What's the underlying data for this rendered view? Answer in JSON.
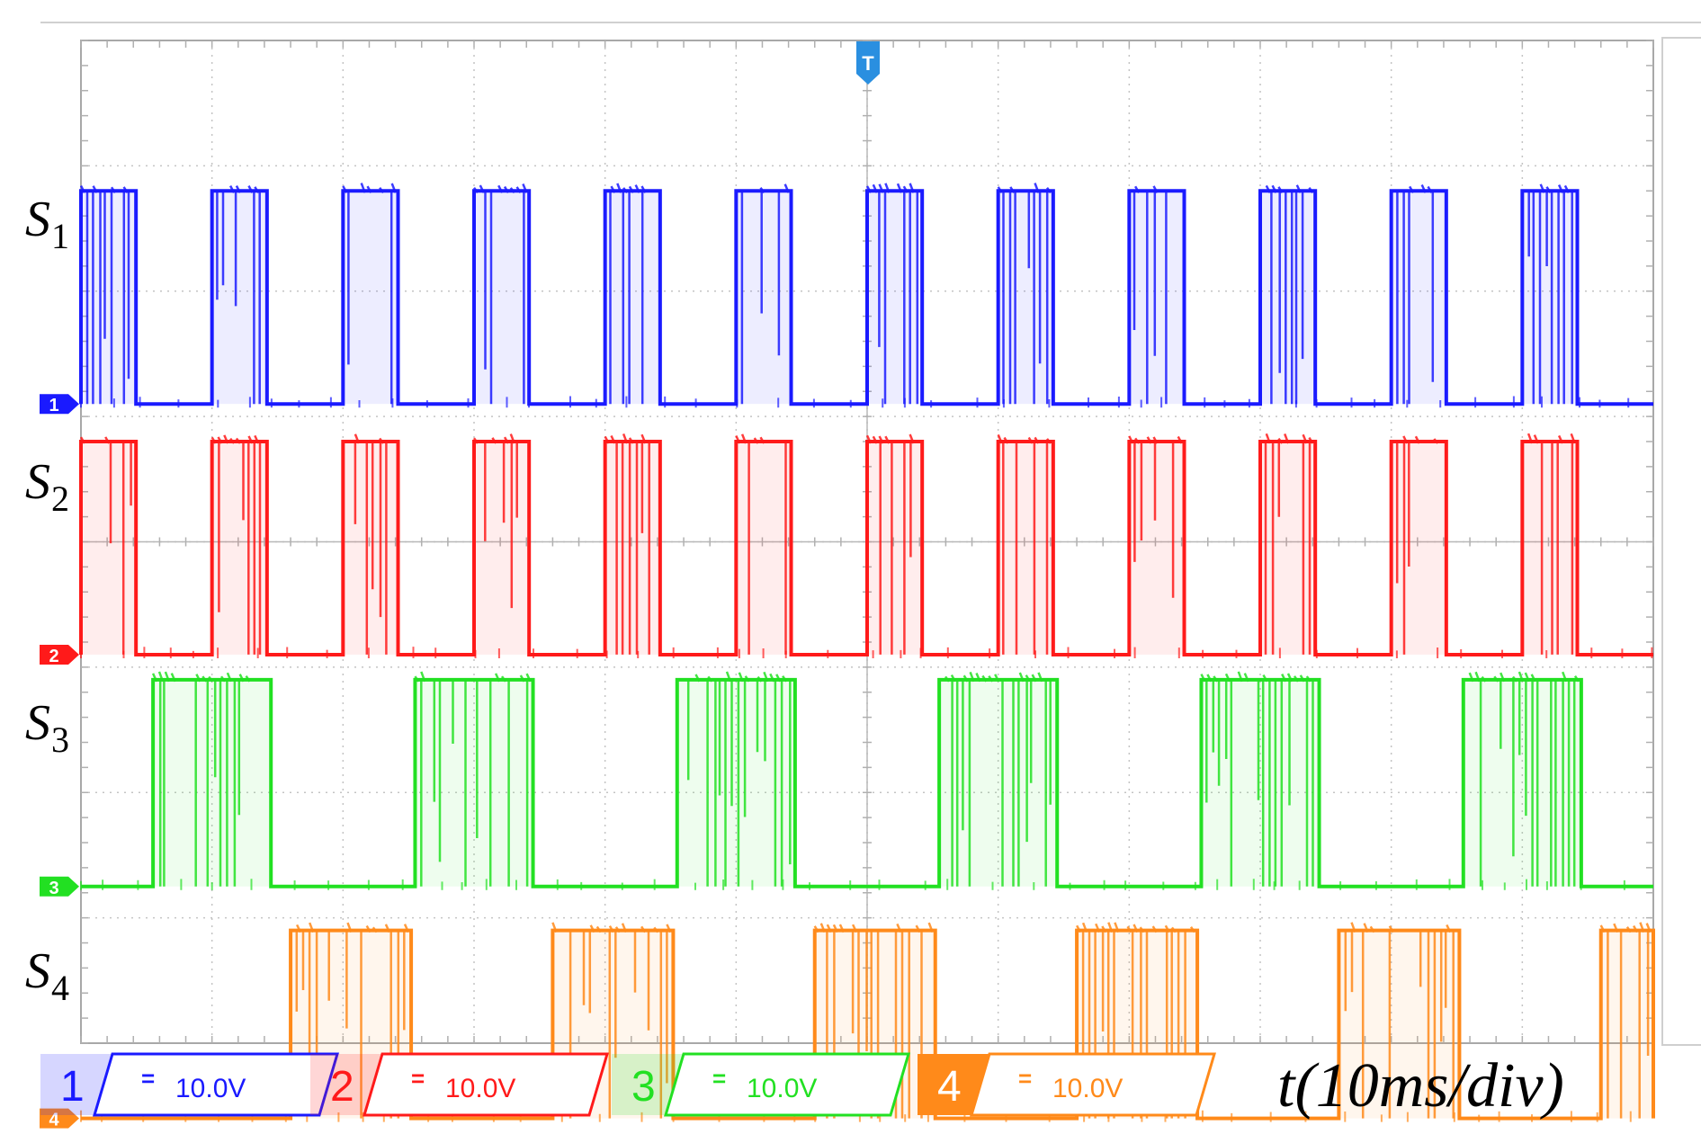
{
  "chart_data": {
    "type": "line",
    "title": "",
    "x_per_div": "10ms/div",
    "x_divisions": 12,
    "y_divisions": 8,
    "grid": true,
    "trigger_marker": "T",
    "series": [
      {
        "name": "S",
        "subscript": "1",
        "channel": "1",
        "color": "#1a1aff",
        "scale": "10.0V",
        "coupling_symbol": "=",
        "high_level_div": 6.8,
        "low_level_div": 5.1,
        "period_div": 1.0,
        "first_high_div": 0.0,
        "duty": 0.42
      },
      {
        "name": "S",
        "subscript": "2",
        "channel": "2",
        "color": "#ff1a1a",
        "scale": "10.0V",
        "coupling_symbol": "=",
        "high_level_div": 4.8,
        "low_level_div": 3.1,
        "period_div": 1.0,
        "first_high_div": 0.0,
        "duty": 0.42
      },
      {
        "name": "S",
        "subscript": "3",
        "channel": "3",
        "color": "#22e022",
        "scale": "10.0V",
        "coupling_symbol": "=",
        "high_level_div": 2.9,
        "low_level_div": 1.25,
        "period_div": 2.0,
        "first_high_div": 0.55,
        "duty": 0.45
      },
      {
        "name": "S",
        "subscript": "4",
        "channel": "4",
        "color": "#ff8a1a",
        "scale": "10.0V",
        "coupling_symbol": "=",
        "high_level_div": 0.9,
        "low_level_div": -0.6,
        "period_div": 2.0,
        "first_high_div": 1.6,
        "duty": 0.46
      }
    ]
  },
  "timebase_label": "t(10ms/div)"
}
